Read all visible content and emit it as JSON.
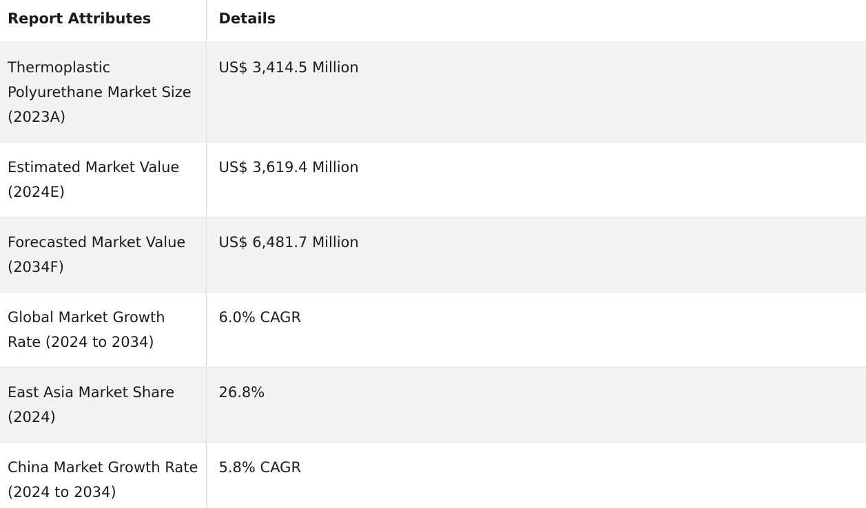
{
  "table": {
    "headers": [
      "Report Attributes",
      "Details"
    ],
    "rows": [
      [
        "Thermoplastic Polyurethane Market Size (2023A)",
        "US$ 3,414.5 Million"
      ],
      [
        "Estimated Market Value (2024E)",
        "US$ 3,619.4 Million"
      ],
      [
        "Forecasted Market Value (2034F)",
        "US$ 6,481.7 Million"
      ],
      [
        "Global Market Growth Rate (2024 to 2034)",
        "6.0% CAGR"
      ],
      [
        "East Asia Market Share (2024)",
        "26.8%"
      ],
      [
        "China Market Growth Rate (2024 to 2034)",
        "5.8% CAGR"
      ]
    ]
  }
}
